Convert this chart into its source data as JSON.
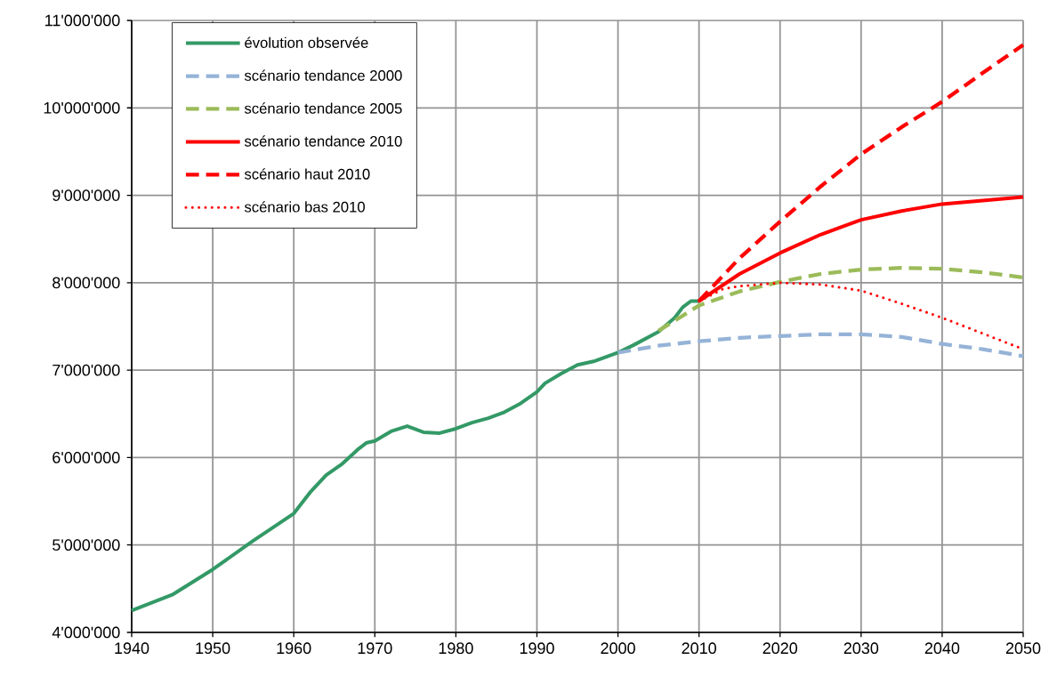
{
  "chart_data": {
    "type": "line",
    "xlim": [
      1940,
      2050
    ],
    "ylim": [
      4000000,
      11000000
    ],
    "xticks": [
      1940,
      1950,
      1960,
      1970,
      1980,
      1990,
      2000,
      2010,
      2020,
      2030,
      2040,
      2050
    ],
    "yticks": [
      {
        "value": 4000000,
        "label": "4'000'000"
      },
      {
        "value": 5000000,
        "label": "5'000'000"
      },
      {
        "value": 6000000,
        "label": "6'000'000"
      },
      {
        "value": 7000000,
        "label": "7'000'000"
      },
      {
        "value": 8000000,
        "label": "8'000'000"
      },
      {
        "value": 9000000,
        "label": "9'000'000"
      },
      {
        "value": 10000000,
        "label": "10'000'000"
      },
      {
        "value": 11000000,
        "label": "11'000'000"
      }
    ],
    "grid": true,
    "legend": "top left",
    "marker": "none",
    "series": [
      {
        "name": "évolution observée",
        "color": "#339966",
        "line_style": "solid",
        "x": [
          1940,
          1945,
          1950,
          1955,
          1960,
          1962,
          1964,
          1966,
          1968,
          1969,
          1970,
          1972,
          1974,
          1976,
          1978,
          1980,
          1982,
          1984,
          1986,
          1988,
          1990,
          1991,
          1993,
          1995,
          1997,
          2000,
          2002,
          2005,
          2007,
          2008,
          2009,
          2010
        ],
        "values": [
          4250000,
          4430000,
          4720000,
          5050000,
          5360000,
          5600000,
          5800000,
          5930000,
          6100000,
          6170000,
          6190000,
          6300000,
          6360000,
          6290000,
          6280000,
          6330000,
          6400000,
          6450000,
          6520000,
          6620000,
          6750000,
          6850000,
          6960000,
          7060000,
          7100000,
          7200000,
          7290000,
          7440000,
          7600000,
          7720000,
          7790000,
          7790000
        ]
      },
      {
        "name": "scénario tendance  2000",
        "color": "#95b3d7",
        "line_style": "dashed",
        "x": [
          2000,
          2005,
          2010,
          2015,
          2020,
          2025,
          2030,
          2035,
          2040,
          2045,
          2050
        ],
        "values": [
          7200000,
          7280000,
          7330000,
          7370000,
          7390000,
          7410000,
          7410000,
          7380000,
          7300000,
          7240000,
          7160000
        ]
      },
      {
        "name": "scénario tendance  2005",
        "color": "#9bbb59",
        "line_style": "dashed",
        "x": [
          2005,
          2010,
          2015,
          2020,
          2025,
          2030,
          2035,
          2040,
          2045,
          2050
        ],
        "values": [
          7450000,
          7740000,
          7900000,
          8010000,
          8100000,
          8150000,
          8170000,
          8160000,
          8120000,
          8060000
        ]
      },
      {
        "name": "scénario tendance  2010",
        "color": "#ff0000",
        "line_style": "solid",
        "x": [
          2010,
          2015,
          2020,
          2025,
          2030,
          2035,
          2040,
          2045,
          2050
        ],
        "values": [
          7790000,
          8100000,
          8340000,
          8550000,
          8720000,
          8820000,
          8900000,
          8940000,
          8980000
        ]
      },
      {
        "name": "scénario haut  2010",
        "color": "#ff0000",
        "line_style": "dashed",
        "x": [
          2010,
          2015,
          2020,
          2025,
          2030,
          2035,
          2040,
          2045,
          2050
        ],
        "values": [
          7790000,
          8280000,
          8700000,
          9100000,
          9470000,
          9780000,
          10070000,
          10400000,
          10720000
        ]
      },
      {
        "name": "scénario bas  2010",
        "color": "#ff0000",
        "line_style": "dotted",
        "x": [
          2010,
          2013,
          2015,
          2020,
          2025,
          2030,
          2035,
          2040,
          2045,
          2050
        ],
        "values": [
          7790000,
          7930000,
          7960000,
          8000000,
          7980000,
          7910000,
          7760000,
          7600000,
          7420000,
          7240000
        ]
      }
    ]
  }
}
